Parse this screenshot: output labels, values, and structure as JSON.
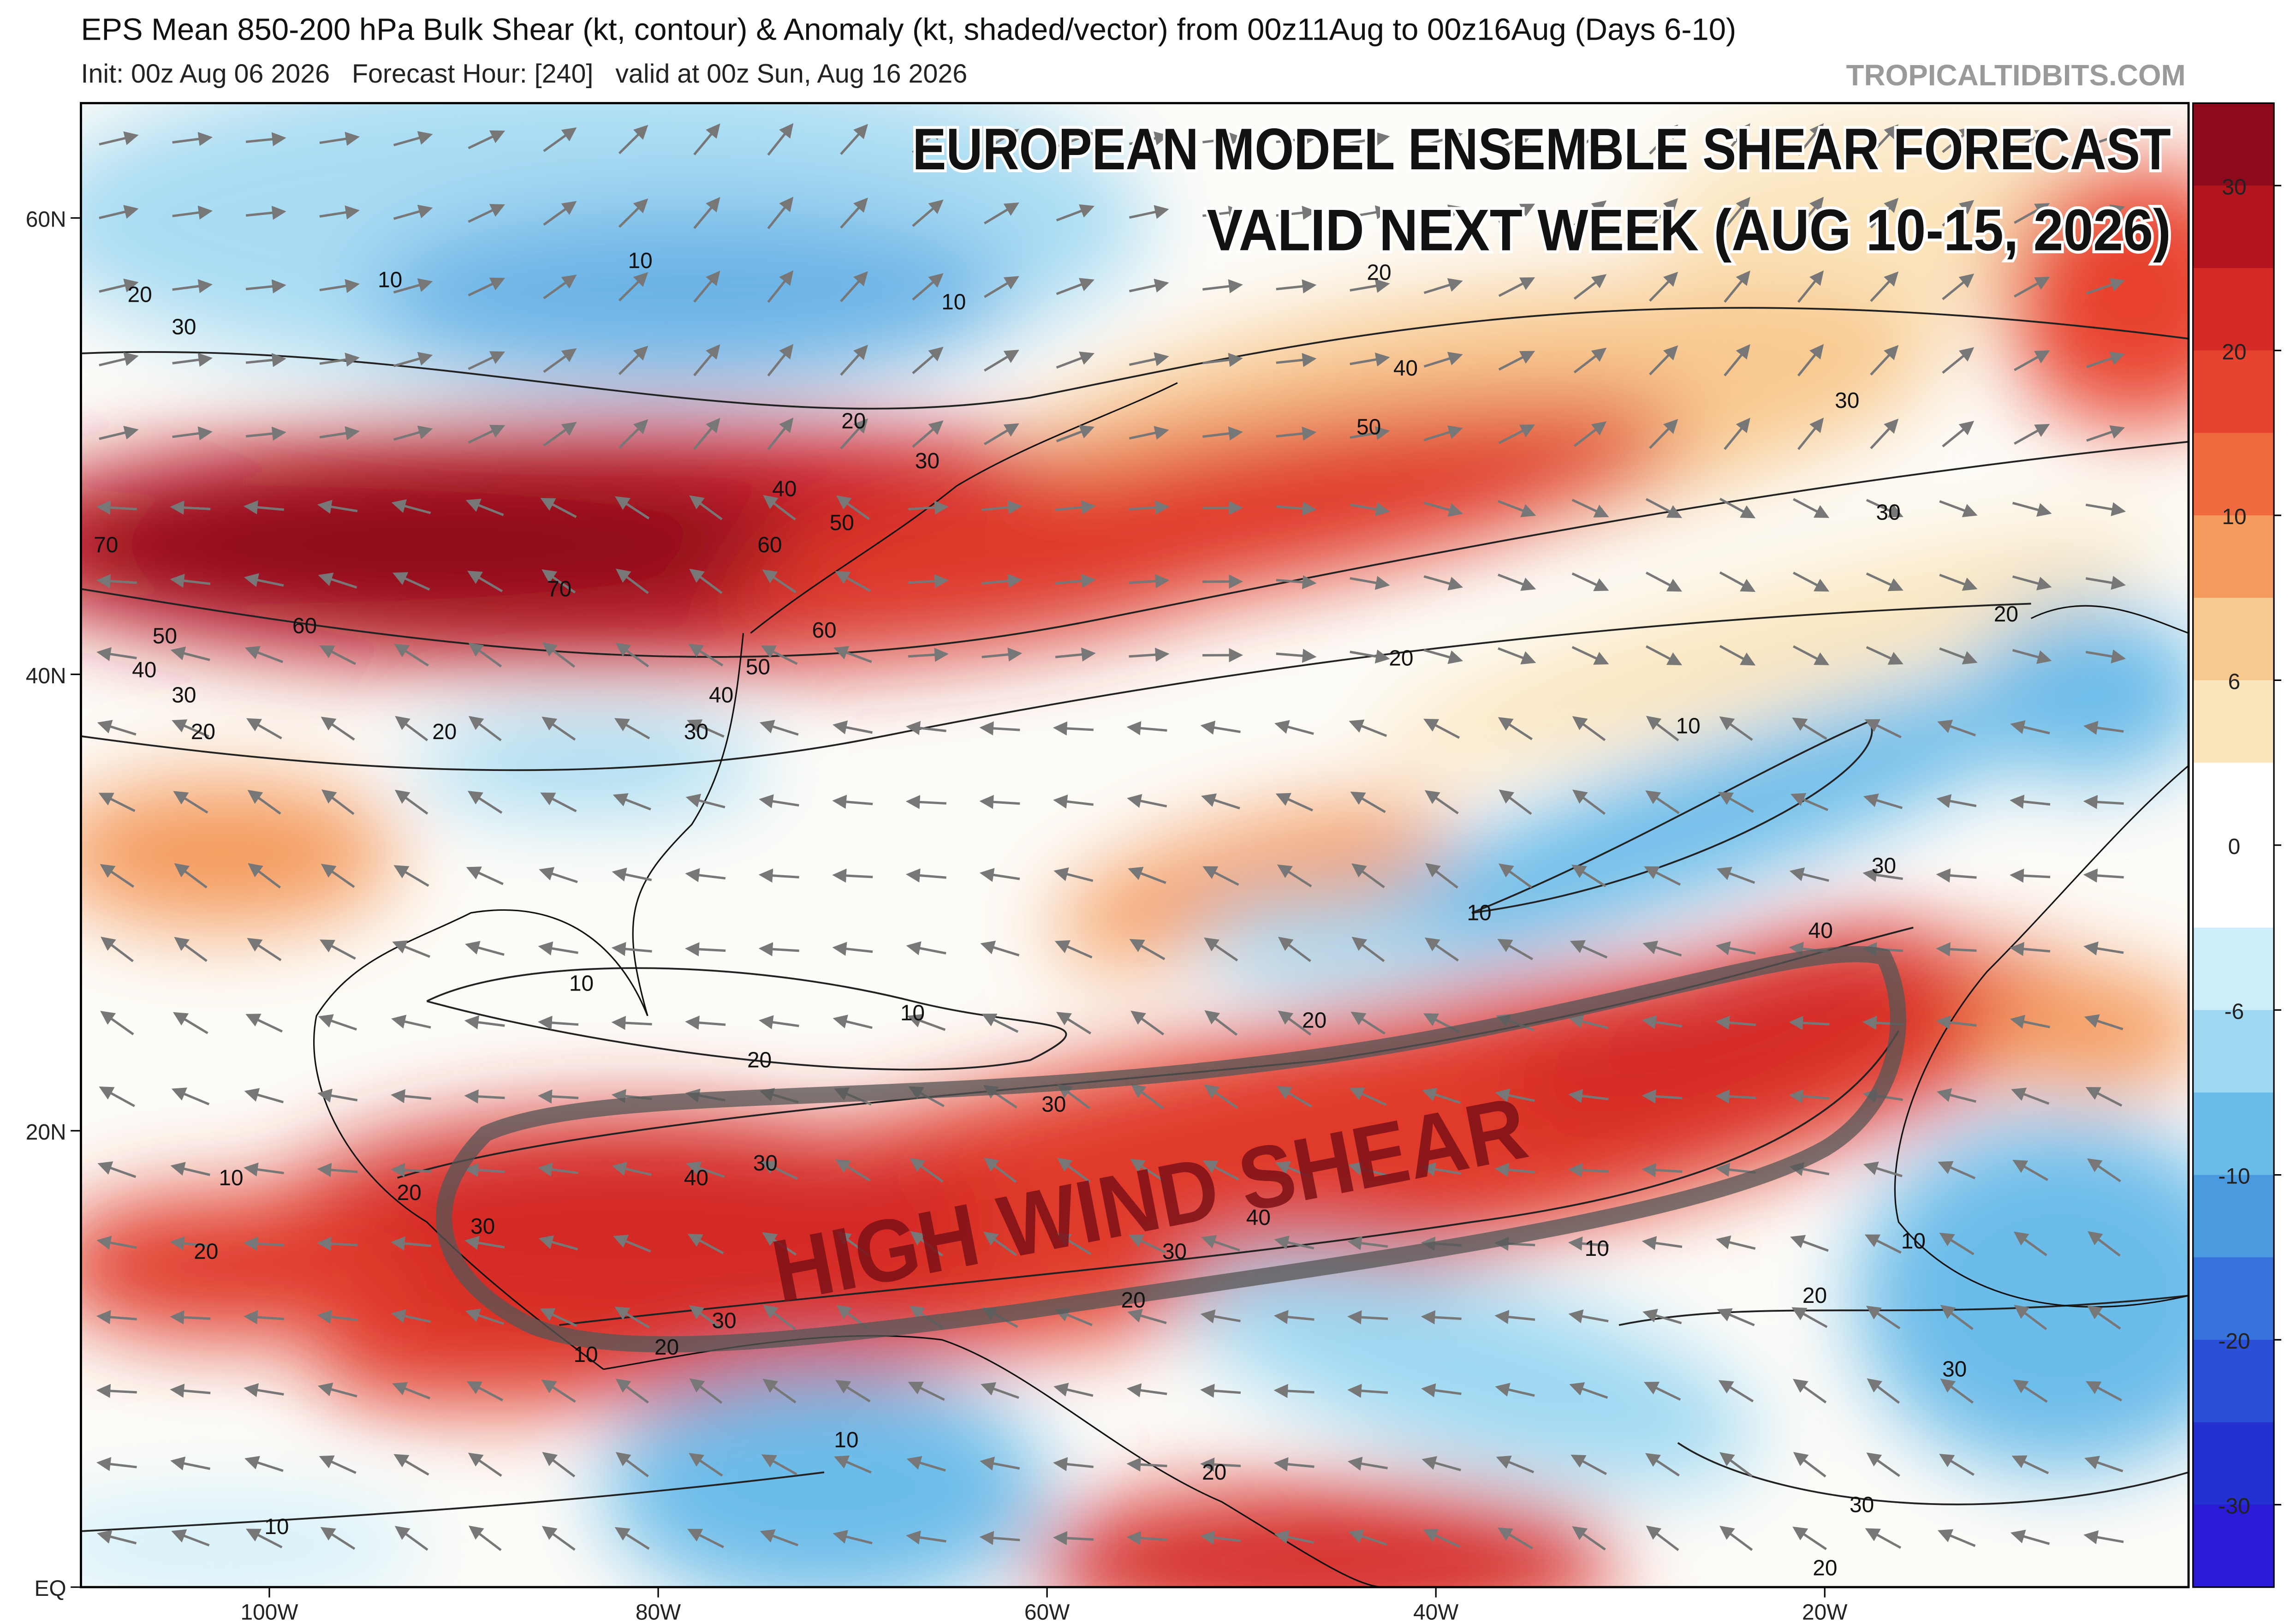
{
  "header": {
    "title": "EPS Mean 850-200 hPa Bulk Shear (kt, contour) & Anomaly (kt, shaded/vector) from 00z11Aug to 00z16Aug (Days 6-10)",
    "subtitle": "Init: 00z Aug 06 2026   Forecast Hour: [240]   valid at 00z Sun, Aug 16 2026",
    "source": "TROPICALTIDBITS.COM"
  },
  "overlay": {
    "headline": [
      "EUROPEAN MODEL ENSEMBLE SHEAR FORECAST",
      "VALID NEXT WEEK (AUG 10-15, 2026)"
    ],
    "callout": "HIGH WIND SHEAR"
  },
  "map": {
    "lat_ticks": [
      {
        "value": 60,
        "label": "60N"
      },
      {
        "value": 40,
        "label": "40N"
      },
      {
        "value": 20,
        "label": "20N"
      },
      {
        "value": 0,
        "label": "EQ"
      }
    ],
    "lon_ticks": [
      {
        "value": -100,
        "label": "100W"
      },
      {
        "value": -80,
        "label": "80W"
      },
      {
        "value": -60,
        "label": "60W"
      },
      {
        "value": -40,
        "label": "40W"
      },
      {
        "value": -20,
        "label": "20W"
      }
    ],
    "contour_labels": [
      10,
      10,
      10,
      20,
      30,
      20,
      30,
      40,
      50,
      60,
      70,
      70,
      60,
      50,
      40,
      30,
      20,
      20,
      60,
      50,
      40,
      30,
      40,
      50,
      30,
      30,
      20,
      20,
      20,
      10,
      10,
      30,
      40,
      10,
      10,
      20,
      20,
      30,
      20,
      30,
      40,
      30,
      40,
      30,
      10,
      20,
      20,
      10,
      20,
      10,
      30,
      20,
      10,
      30,
      10,
      10,
      20,
      30,
      20
    ]
  },
  "colorbar": {
    "ticks": [
      30,
      20,
      10,
      6,
      0,
      -6,
      -10,
      -20,
      -30
    ],
    "colors": [
      "#8c0a1c",
      "#b3151f",
      "#d42a26",
      "#e8432e",
      "#ef6a3e",
      "#f49a5c",
      "#f8c98f",
      "#fbe5bd",
      "#ffffff",
      "#ffffff",
      "#cdeefa",
      "#9fd8f2",
      "#6cbce9",
      "#4a9ae0",
      "#3773dc",
      "#2a4fd8",
      "#2331d0",
      "#2c1bd6"
    ]
  }
}
